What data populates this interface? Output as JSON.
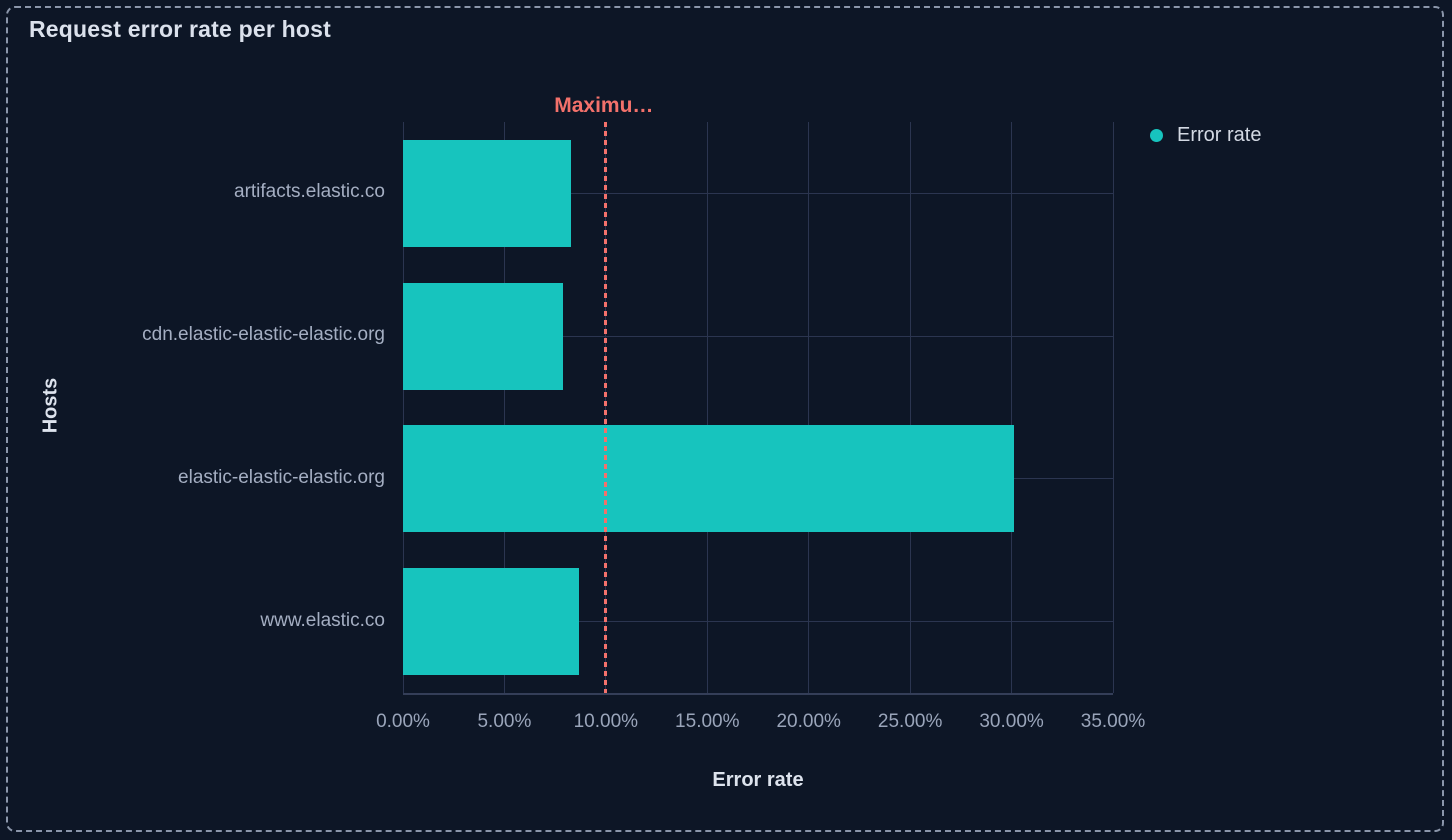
{
  "panel": {
    "title": "Request error rate per host"
  },
  "legend": {
    "position": "right",
    "items": [
      {
        "label": "Error rate",
        "color": "#17c4be"
      }
    ]
  },
  "chart_data": {
    "type": "bar",
    "orientation": "horizontal",
    "title": "Request error rate per host",
    "xlabel": "Error rate",
    "ylabel": "Hosts",
    "categories": [
      "artifacts.elastic.co",
      "cdn.elastic-elastic-elastic.org",
      "elastic-elastic-elastic.org",
      "www.elastic.co"
    ],
    "series": [
      {
        "name": "Error rate",
        "color": "#17c4be",
        "values": [
          8.3,
          7.9,
          30.1,
          8.7
        ]
      }
    ],
    "value_unit": "%",
    "xlim": [
      0,
      35
    ],
    "x_tick_values": [
      0,
      5,
      10,
      15,
      20,
      25,
      30,
      35
    ],
    "x_tick_labels": [
      "0.00%",
      "5.00%",
      "10.00%",
      "15.00%",
      "20.00%",
      "25.00%",
      "30.00%",
      "35.00%"
    ],
    "grid": true,
    "legend_position": "right",
    "annotation": {
      "label": "Maximu…",
      "value": 10,
      "color": "#f3716b",
      "style": "dashed-vertical-line"
    }
  },
  "colors": {
    "background": "#0d1626",
    "panel_border": "#8b96aa",
    "grid": "#2b3550",
    "axis_line": "#343e58",
    "bar": "#17c4be",
    "threshold": "#f3716b",
    "title_text": "#dbe1ec",
    "muted_text": "#9aa5ba"
  }
}
